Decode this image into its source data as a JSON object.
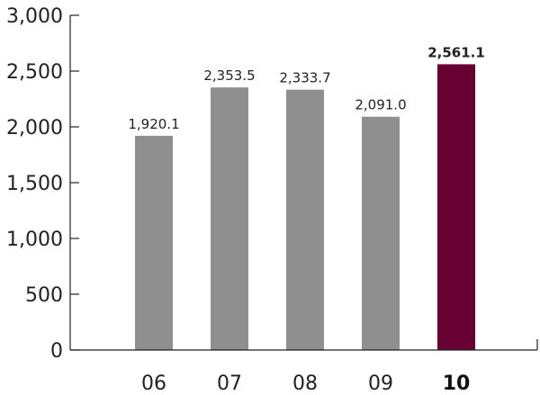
{
  "chart_data": {
    "type": "bar",
    "categories": [
      "06",
      "07",
      "08",
      "09",
      "10"
    ],
    "values": [
      1920.1,
      2353.5,
      2333.7,
      2091.0,
      2561.1
    ],
    "value_labels": [
      "1,920.1",
      "2,353.5",
      "2,333.7",
      "2,091.0",
      "2,561.1"
    ],
    "highlight_index": 4,
    "ylim": [
      0,
      3000
    ],
    "y_ticks": [
      0,
      500,
      1000,
      1500,
      2000,
      2500,
      3000
    ],
    "y_tick_labels": [
      "0",
      "500",
      "1,000",
      "1,500",
      "2,000",
      "2,500",
      "3,000"
    ],
    "grid": false,
    "legend": "none",
    "colors": {
      "bar": "#8f8f8f",
      "highlight": "#690033",
      "axis": "#222222"
    }
  }
}
